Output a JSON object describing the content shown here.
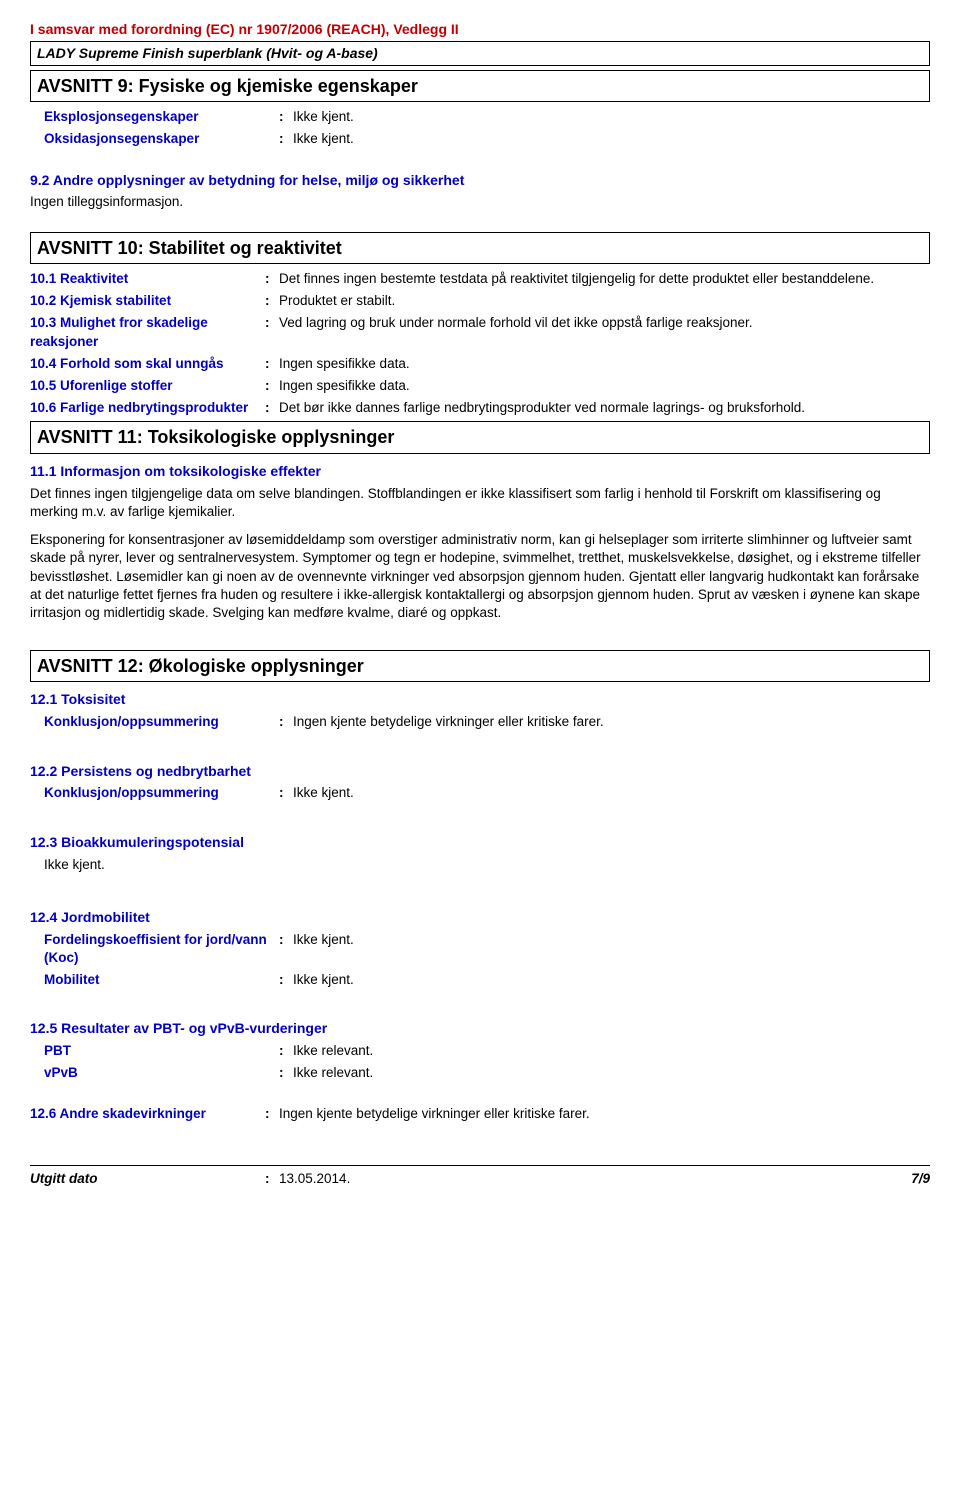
{
  "header": {
    "regulation": "I samsvar med forordning (EC) nr 1907/2006 (REACH), Vedlegg II",
    "product": "LADY Supreme Finish superblank (Hvit- og A-base)"
  },
  "section9": {
    "title": "AVSNITT 9: Fysiske og kjemiske egenskaper",
    "rows": [
      {
        "key": "Eksplosjonsegenskaper",
        "val": "Ikke kjent."
      },
      {
        "key": "Oksidasjonsegenskaper",
        "val": "Ikke kjent."
      }
    ],
    "sub92": "9.2 Andre opplysninger av betydning for helse, miljø og sikkerhet",
    "sub92_text": "Ingen tilleggsinformasjon."
  },
  "section10": {
    "title": "AVSNITT 10: Stabilitet og reaktivitet",
    "rows": [
      {
        "key": "10.1 Reaktivitet",
        "val": "Det finnes ingen bestemte testdata på reaktivitet tilgjengelig for dette produktet eller bestanddelene."
      },
      {
        "key": "10.2 Kjemisk stabilitet",
        "val": "Produktet er stabilt."
      },
      {
        "key": "10.3 Mulighet fror skadelige reaksjoner",
        "val": "Ved lagring og bruk under normale forhold vil det ikke oppstå farlige reaksjoner."
      },
      {
        "key": "10.4 Forhold som skal unngås",
        "val": "Ingen spesifikke data."
      },
      {
        "key": "10.5 Uforenlige stoffer",
        "val": "Ingen spesifikke data."
      },
      {
        "key": "10.6 Farlige nedbrytingsprodukter",
        "val": "Det bør ikke dannes farlige nedbrytingsprodukter ved normale lagrings- og bruksforhold."
      }
    ]
  },
  "section11": {
    "title": "AVSNITT 11: Toksikologiske opplysninger",
    "sub111": "11.1 Informasjon om toksikologiske effekter",
    "para1": "Det finnes ingen tilgjengelige data om selve blandingen. Stoffblandingen er ikke klassifisert som farlig i henhold til Forskrift om klassifisering og merking m.v. av farlige kjemikalier.",
    "para2": "Eksponering for konsentrasjoner av løsemiddeldamp som overstiger administrativ norm, kan gi helseplager som irriterte slimhinner og luftveier samt skade på nyrer, lever og sentralnervesystem. Symptomer og tegn er hodepine, svimmelhet, tretthet, muskelsvekkelse, døsighet, og i ekstreme tilfeller bevisstløshet. Løsemidler kan gi noen av de ovennevnte virkninger ved absorpsjon gjennom huden. Gjentatt eller langvarig hudkontakt kan forårsake at det naturlige fettet fjernes fra huden og resultere i ikke-allergisk kontaktallergi og absorpsjon gjennom huden. Sprut av væsken i øynene kan skape irritasjon og midlertidig skade. Svelging kan medføre kvalme, diaré og oppkast."
  },
  "section12": {
    "title": "AVSNITT 12: Økologiske opplysninger",
    "sub121": "12.1 Toksisitet",
    "row121": {
      "key": "Konklusjon/oppsummering",
      "val": "Ingen kjente betydelige virkninger eller kritiske farer."
    },
    "sub122": "12.2 Persistens og nedbrytbarhet",
    "row122": {
      "key": "Konklusjon/oppsummering",
      "val": "Ikke kjent."
    },
    "sub123": "12.3 Bioakkumuleringspotensial",
    "text123": "Ikke kjent.",
    "sub124": "12.4 Jordmobilitet",
    "rows124": [
      {
        "key": "Fordelingskoeffisient for jord/vann (Koc)",
        "val": "Ikke kjent."
      },
      {
        "key": "Mobilitet",
        "val": "Ikke kjent."
      }
    ],
    "sub125": "12.5 Resultater av PBT- og vPvB-vurderinger",
    "rows125": [
      {
        "key": "PBT",
        "val": "Ikke relevant."
      },
      {
        "key": "vPvB",
        "val": "Ikke relevant."
      }
    ],
    "row126": {
      "key": "12.6 Andre skadevirkninger",
      "val": "Ingen kjente betydelige virkninger eller kritiske farer."
    }
  },
  "footer": {
    "label": "Utgitt dato",
    "date": "13.05.2014.",
    "page": "7/9"
  }
}
